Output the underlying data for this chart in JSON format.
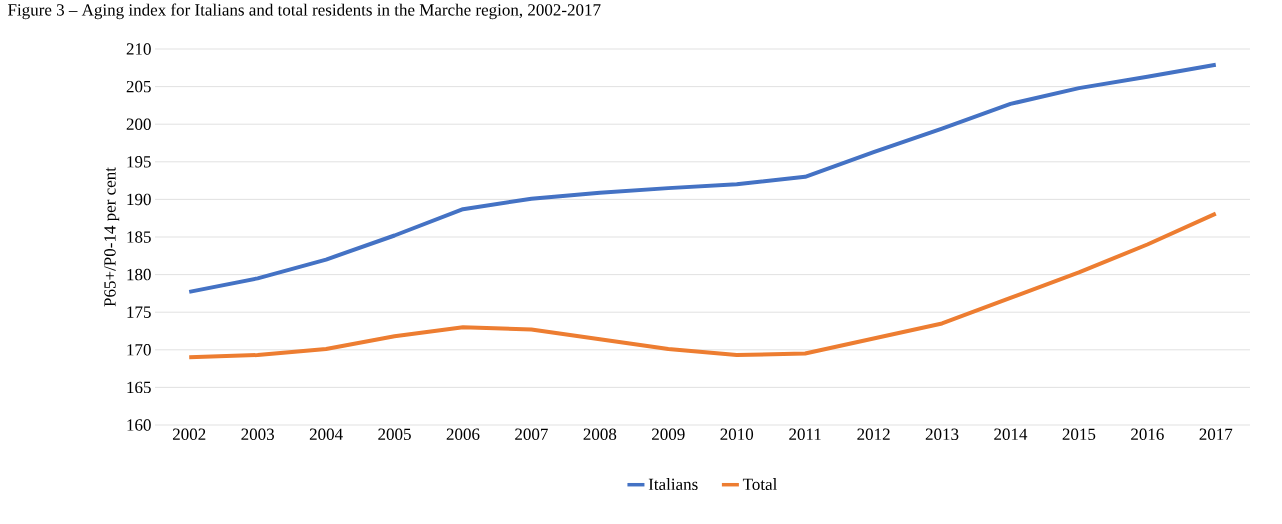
{
  "chart_data": {
    "type": "line",
    "title": "Figure 3 – Aging index for Italians and total residents in the Marche region, 2002-2017",
    "ylabel": "P65+/P0-14 per cent",
    "categories": [
      "2002",
      "2003",
      "2004",
      "2005",
      "2006",
      "2007",
      "2008",
      "2009",
      "2010",
      "2011",
      "2012",
      "2013",
      "2014",
      "2015",
      "2016",
      "2017"
    ],
    "series": [
      {
        "name": "Italians",
        "color": "#4472c4",
        "values": [
          177.7,
          179.5,
          182.0,
          185.2,
          188.7,
          190.1,
          190.9,
          191.5,
          192.0,
          193.0,
          196.3,
          199.4,
          202.7,
          204.8,
          206.3,
          207.9
        ]
      },
      {
        "name": "Total",
        "color": "#ed7d31",
        "values": [
          169.0,
          169.3,
          170.1,
          171.8,
          173.0,
          172.7,
          171.4,
          170.1,
          169.3,
          169.5,
          171.5,
          173.5,
          176.9,
          180.3,
          184.0,
          188.1
        ]
      }
    ],
    "ylim": [
      160,
      210
    ],
    "yticks": [
      160,
      165,
      170,
      175,
      180,
      185,
      190,
      195,
      200,
      205,
      210
    ],
    "grid": "y",
    "legend": "bottom",
    "marker": "none",
    "line_style": "solid"
  }
}
